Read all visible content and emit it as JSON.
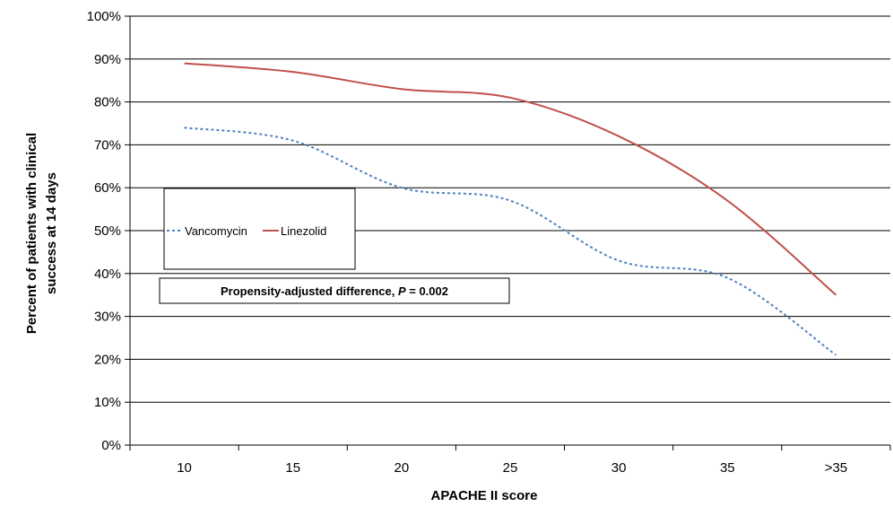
{
  "chart_data": {
    "type": "line",
    "title": "",
    "xlabel": "APACHE II score",
    "ylabel_lines": [
      "Percent of patients with clinical",
      "success at 14 days"
    ],
    "categories": [
      "10",
      "15",
      "20",
      "25",
      "30",
      "35",
      ">35"
    ],
    "y_ticks": [
      "0%",
      "10%",
      "20%",
      "30%",
      "40%",
      "50%",
      "60%",
      "70%",
      "80%",
      "90%",
      "100%"
    ],
    "ylim": [
      0,
      100
    ],
    "grid": true,
    "legend": "upper-left inside plot",
    "series": [
      {
        "name": "Vancomycin",
        "color": "#4F81BD",
        "style": "dashed",
        "values": [
          74,
          71,
          60,
          57,
          43,
          39,
          21
        ]
      },
      {
        "name": "Linezolid",
        "color": "#C0504D",
        "style": "solid",
        "values": [
          89,
          87,
          83,
          81,
          72,
          57,
          35
        ]
      }
    ],
    "annotation": {
      "prefix": "Propensity-adjusted difference, ",
      "p_symbol": "P",
      "suffix": " = 0.002"
    }
  }
}
